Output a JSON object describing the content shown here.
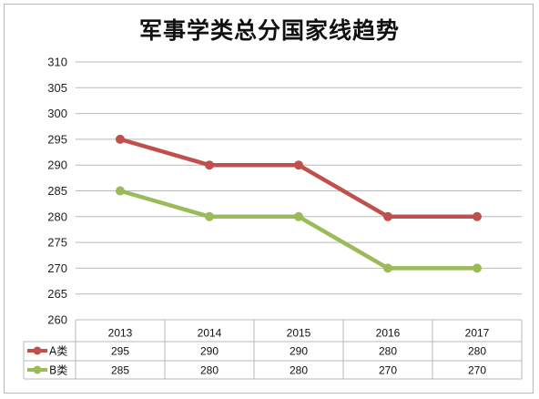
{
  "chart_data": {
    "type": "line",
    "title": "军事学类总分国家线趋势",
    "categories": [
      "2013",
      "2014",
      "2015",
      "2016",
      "2017"
    ],
    "series": [
      {
        "name": "A类",
        "values": [
          295,
          290,
          290,
          280,
          280
        ],
        "color": "#c0504d"
      },
      {
        "name": "B类",
        "values": [
          285,
          280,
          280,
          270,
          270
        ],
        "color": "#9bbb59"
      }
    ],
    "ylim": [
      260,
      310
    ],
    "yticks": [
      260,
      265,
      270,
      275,
      280,
      285,
      290,
      295,
      300,
      305,
      310
    ],
    "grid": true,
    "legend": "data-table"
  }
}
